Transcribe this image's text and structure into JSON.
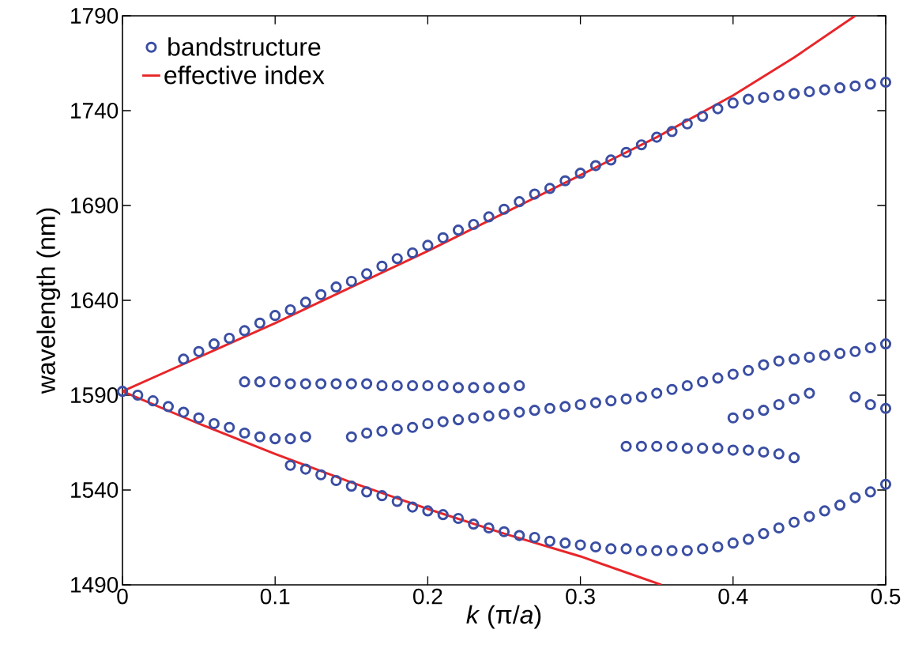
{
  "chart_data": {
    "type": "scatter",
    "xlabel": "*k* (π/*a*)",
    "ylabel": "wavelength (nm)",
    "xlim": [
      0,
      0.5
    ],
    "xticks": [
      0,
      0.1,
      0.2,
      0.3,
      0.4,
      0.5
    ],
    "ylim": [
      1490,
      1790
    ],
    "yticks": [
      1490,
      1540,
      1590,
      1640,
      1690,
      1740,
      1790
    ],
    "legend": "top left",
    "grid": false,
    "series": [
      {
        "name": "bandstructure",
        "marker": "circle",
        "color": "#3a4ea3",
        "x": [
          0.04,
          0.05,
          0.06,
          0.07,
          0.08,
          0.09,
          0.1,
          0.11,
          0.12,
          0.13,
          0.14,
          0.15,
          0.16,
          0.17,
          0.18,
          0.19,
          0.2,
          0.21,
          0.22,
          0.23,
          0.24,
          0.25,
          0.26,
          0.27,
          0.28,
          0.29,
          0.3,
          0.31,
          0.32,
          0.33,
          0.34,
          0.35,
          0.36,
          0.37,
          0.38,
          0.39,
          0.4,
          0.41,
          0.42,
          0.43,
          0.44,
          0.45,
          0.46,
          0.47,
          0.48,
          0.49,
          0.5,
          0,
          0.01,
          0.02,
          0.03,
          0.04,
          0.05,
          0.06,
          0.07,
          0.08,
          0.09,
          0.1,
          0.11,
          0.12,
          0.08,
          0.09,
          0.1,
          0.11,
          0.12,
          0.13,
          0.14,
          0.15,
          0.16,
          0.17,
          0.18,
          0.19,
          0.2,
          0.21,
          0.22,
          0.23,
          0.24,
          0.25,
          0.26,
          0.11,
          0.12,
          0.13,
          0.14,
          0.15,
          0.16,
          0.17,
          0.18,
          0.19,
          0.2,
          0.21,
          0.22,
          0.23,
          0.24,
          0.25,
          0.26,
          0.27,
          0.28,
          0.29,
          0.3,
          0.31,
          0.32,
          0.33,
          0.34,
          0.35,
          0.36,
          0.37,
          0.38,
          0.39,
          0.4,
          0.41,
          0.42,
          0.43,
          0.44,
          0.45,
          0.46,
          0.47,
          0.48,
          0.49,
          0.5,
          0.15,
          0.16,
          0.17,
          0.18,
          0.19,
          0.2,
          0.21,
          0.22,
          0.23,
          0.24,
          0.25,
          0.26,
          0.27,
          0.28,
          0.29,
          0.3,
          0.31,
          0.32,
          0.33,
          0.34,
          0.35,
          0.36,
          0.37,
          0.38,
          0.39,
          0.4,
          0.41,
          0.42,
          0.43,
          0.44,
          0.45,
          0.46,
          0.47,
          0.48,
          0.49,
          0.5,
          0.33,
          0.34,
          0.35,
          0.36,
          0.37,
          0.38,
          0.39,
          0.4,
          0.41,
          0.42,
          0.43,
          0.44,
          0.4,
          0.41,
          0.42,
          0.43,
          0.44,
          0.45,
          0.48,
          0.49,
          0.5
        ],
        "values": [
          1609,
          1613,
          1617,
          1620,
          1624,
          1628,
          1632,
          1635,
          1639,
          1643,
          1647,
          1650,
          1654,
          1658,
          1662,
          1665,
          1669,
          1673,
          1677,
          1680,
          1684,
          1688,
          1692,
          1696,
          1699,
          1703,
          1707,
          1711,
          1714,
          1718,
          1722,
          1726,
          1729,
          1733,
          1737,
          1741,
          1744,
          1746,
          1747,
          1748,
          1749,
          1750,
          1751,
          1752,
          1753,
          1754,
          1755,
          1592,
          1590,
          1587,
          1584,
          1581,
          1578,
          1575,
          1573,
          1570,
          1568,
          1567,
          1567,
          1568,
          1597,
          1597,
          1597,
          1596,
          1596,
          1596,
          1596,
          1596,
          1596,
          1595,
          1595,
          1595,
          1595,
          1595,
          1594,
          1594,
          1594,
          1594,
          1595,
          1553,
          1551,
          1548,
          1545,
          1542,
          1539,
          1537,
          1534,
          1531,
          1529,
          1527,
          1525,
          1522,
          1520,
          1518,
          1516,
          1515,
          1513,
          1512,
          1511,
          1510,
          1509,
          1509,
          1508,
          1508,
          1508,
          1508,
          1509,
          1510,
          1512,
          1514,
          1517,
          1520,
          1523,
          1526,
          1529,
          1532,
          1536,
          1539,
          1543,
          1568,
          1570,
          1571,
          1572,
          1573,
          1575,
          1576,
          1577,
          1578,
          1579,
          1580,
          1581,
          1582,
          1583,
          1584,
          1585,
          1586,
          1587,
          1588,
          1589,
          1591,
          1593,
          1595,
          1597,
          1599,
          1601,
          1603,
          1606,
          1608,
          1609,
          1610,
          1611,
          1612,
          1613,
          1615,
          1617,
          1563,
          1563,
          1563,
          1563,
          1562,
          1562,
          1562,
          1561,
          1561,
          1560,
          1559,
          1557,
          1578,
          1580,
          1582,
          1585,
          1588,
          1591,
          1589,
          1585,
          1583
        ]
      },
      {
        "name": "effective index",
        "type": "line",
        "color": "#e8262a",
        "line_style": "solid",
        "x": [
          0,
          0.05,
          0.1,
          0.15,
          0.2,
          0.25,
          0.3,
          0.35,
          0.4,
          0.44,
          0.48
        ],
        "values": [
          1592,
          1610,
          1628,
          1647,
          1666,
          1686,
          1706,
          1726,
          1748,
          1768,
          1790
        ]
      },
      {
        "type": "line",
        "color": "#e8262a",
        "line_style": "solid",
        "x": [
          0,
          0.05,
          0.1,
          0.15,
          0.2,
          0.25,
          0.3,
          0.353
        ],
        "values": [
          1592,
          1575,
          1559,
          1544,
          1530,
          1517,
          1505,
          1490
        ]
      }
    ]
  }
}
